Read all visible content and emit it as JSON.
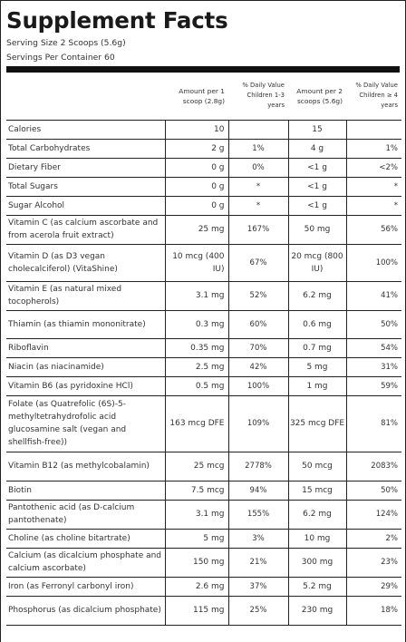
{
  "title": "Supplement Facts",
  "serving_size": "Serving Size 2 Scoops (5.6g)",
  "servings_per_container": "Servings Per Container 60",
  "headers": {
    "amount_1": "Amount per 1 scoop (2.8g)",
    "dv_children_1_3": "% Daily Value Children 1-3 years",
    "amount_2": "Amount per 2 scoops (5.6g)",
    "dv_children_4": "% Daily Value Children ≥ 4 years"
  },
  "rows": [
    {
      "name": "Calories",
      "a1": "10",
      "dv1": "",
      "a2": "15",
      "dv2": ""
    },
    {
      "name": "Total Carbohydrates",
      "a1": "2 g",
      "dv1": "1%",
      "a2": "4 g",
      "dv2": "1%"
    },
    {
      "name": "Dietary Fiber",
      "a1": "0 g",
      "dv1": "0%",
      "a2": "<1 g",
      "dv2": "<2%"
    },
    {
      "name": "Total Sugars",
      "a1": "0 g",
      "dv1": "*",
      "a2": "<1 g",
      "dv2": "*"
    },
    {
      "name": "Sugar Alcohol",
      "a1": "0 g",
      "dv1": "*",
      "a2": "<1 g",
      "dv2": "*"
    },
    {
      "name": "Vitamin C (as calcium ascorbate and from acerola fruit extract)",
      "a1": "25 mg",
      "dv1": "167%",
      "a2": "50 mg",
      "dv2": "56%"
    },
    {
      "name": "Vitamin D (as D3 vegan cholecalciferol) (VitaShine)",
      "a1": "10 mcg (400 IU)",
      "dv1": "67%",
      "a2": "20 mcg (800 IU)",
      "dv2": "100%"
    },
    {
      "name": "Vitamin E (as natural mixed tocopherols)",
      "a1": "3.1 mg",
      "dv1": "52%",
      "a2": "6.2 mg",
      "dv2": "41%"
    },
    {
      "name": "Thiamin (as thiamin mononitrate)",
      "a1": "0.3 mg",
      "dv1": "60%",
      "a2": "0.6 mg",
      "dv2": "50%"
    },
    {
      "name": "Riboflavin",
      "a1": "0.35 mg",
      "dv1": "70%",
      "a2": "0.7 mg",
      "dv2": "54%"
    },
    {
      "name": "Niacin (as niacinamide)",
      "a1": "2.5 mg",
      "dv1": "42%",
      "a2": "5 mg",
      "dv2": "31%"
    },
    {
      "name": "Vitamin B6 (as pyridoxine HCl)",
      "a1": "0.5 mg",
      "dv1": "100%",
      "a2": "1 mg",
      "dv2": "59%"
    },
    {
      "name": "Folate (as Quatrefolic (6S)-5-methyltetrahydrofolic acid glucosamine salt (vegan and shellfish-free))",
      "a1": "163 mcg DFE",
      "dv1": "109%",
      "a2": "325 mcg DFE",
      "dv2": "81%"
    },
    {
      "name": "Vitamin B12 (as methylcobalamin)",
      "a1": "25 mcg",
      "dv1": "2778%",
      "a2": "50 mcg",
      "dv2": "2083%"
    },
    {
      "name": "Biotin",
      "a1": "7.5 mcg",
      "dv1": "94%",
      "a2": "15 mcg",
      "dv2": "50%"
    },
    {
      "name": "Pantothenic acid (as D-calcium pantothenate)",
      "a1": "3.1 mg",
      "dv1": "155%",
      "a2": "6.2 mg",
      "dv2": "124%"
    },
    {
      "name": "Choline (as choline bitartrate)",
      "a1": "5 mg",
      "dv1": "3%",
      "a2": "10 mg",
      "dv2": "2%"
    },
    {
      "name": "Calcium (as dicalcium phosphate and calcium ascorbate)",
      "a1": "150 mg",
      "dv1": "21%",
      "a2": "300 mg",
      "dv2": "23%"
    },
    {
      "name": "Iron (as Ferronyl carbonyl iron)",
      "a1": "2.6 mg",
      "dv1": "37%",
      "a2": "5.2 mg",
      "dv2": "29%"
    },
    {
      "name": "Phosphorus (as dicalcium phosphate)",
      "a1": "115 mg",
      "dv1": "25%",
      "a2": "230 mg",
      "dv2": "18%"
    }
  ]
}
